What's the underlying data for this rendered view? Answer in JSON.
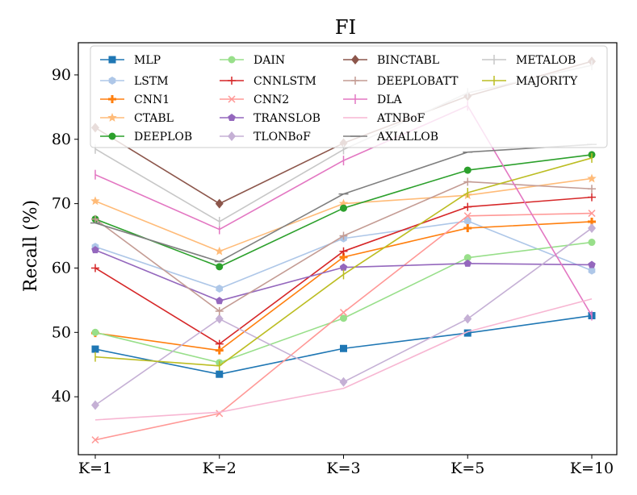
{
  "chart_data": {
    "type": "line",
    "title": "FI",
    "xlabel": "",
    "ylabel": "Recall (%)",
    "categories": [
      "K=1",
      "K=2",
      "K=3",
      "K=5",
      "K=10"
    ],
    "ylim": [
      31,
      95
    ],
    "yticks": [
      40,
      50,
      60,
      70,
      80,
      90
    ],
    "grid": false,
    "legend_position": "top",
    "series": [
      {
        "name": "MLP",
        "color": "#1f77b4",
        "marker": "square",
        "values": [
          47.4,
          43.5,
          47.5,
          49.9,
          52.6
        ]
      },
      {
        "name": "LSTM",
        "color": "#aec7e8",
        "marker": "hexagon",
        "values": [
          63.3,
          56.8,
          64.6,
          67.3,
          59.6
        ]
      },
      {
        "name": "CNN1",
        "color": "#ff7f0e",
        "marker": "plus",
        "values": [
          49.9,
          47.2,
          61.7,
          66.2,
          67.2
        ]
      },
      {
        "name": "CTABL",
        "color": "#ffbb78",
        "marker": "star",
        "values": [
          70.4,
          62.6,
          70.0,
          71.3,
          73.9
        ]
      },
      {
        "name": "DEEPLOB",
        "color": "#2ca02c",
        "marker": "circle",
        "values": [
          67.6,
          60.2,
          69.3,
          75.2,
          77.6
        ]
      },
      {
        "name": "DAIN",
        "color": "#98df8a",
        "marker": "circle",
        "values": [
          50.0,
          45.3,
          52.2,
          61.6,
          64.0
        ]
      },
      {
        "name": "CNNLSTM",
        "color": "#d62728",
        "marker": "thinplus",
        "values": [
          60.0,
          48.2,
          62.6,
          69.5,
          71.0
        ]
      },
      {
        "name": "CNN2",
        "color": "#ff9896",
        "marker": "x",
        "values": [
          33.3,
          37.4,
          53.1,
          68.1,
          68.5
        ]
      },
      {
        "name": "TRANSLOB",
        "color": "#9467bd",
        "marker": "pentagon",
        "values": [
          62.8,
          54.9,
          60.1,
          60.7,
          60.5
        ]
      },
      {
        "name": "TLONBoF",
        "color": "#c5b0d5",
        "marker": "diamond",
        "values": [
          38.7,
          52.1,
          42.3,
          52.1,
          66.2
        ]
      },
      {
        "name": "BINCTABL",
        "color": "#8c564b",
        "marker": "diamond",
        "values": [
          81.8,
          70.0,
          79.4,
          86.7,
          92.1
        ]
      },
      {
        "name": "DEEPLOBATT",
        "color": "#c49c94",
        "marker": "thinplus",
        "values": [
          67.6,
          53.3,
          65.0,
          73.4,
          72.3
        ]
      },
      {
        "name": "DLA",
        "color": "#e377c2",
        "marker": "vline",
        "values": [
          74.5,
          66.0,
          76.7,
          85.2,
          52.6
        ]
      },
      {
        "name": "ATNBoF",
        "color": "#f7b6d2",
        "marker": "none",
        "values": [
          36.4,
          37.6,
          41.3,
          50.1,
          55.2
        ]
      },
      {
        "name": "AXIALLOB",
        "color": "#7f7f7f",
        "marker": "hline",
        "values": [
          67.0,
          61.0,
          71.5,
          78.0,
          79.2
        ]
      },
      {
        "name": "METALOB",
        "color": "#c7c7c7",
        "marker": "vline",
        "values": [
          78.5,
          67.2,
          78.4,
          87.2,
          91.5
        ]
      },
      {
        "name": "MAJORITY",
        "color": "#bcbd22",
        "marker": "vline",
        "values": [
          46.2,
          44.8,
          59.0,
          71.7,
          77.1
        ]
      }
    ]
  }
}
